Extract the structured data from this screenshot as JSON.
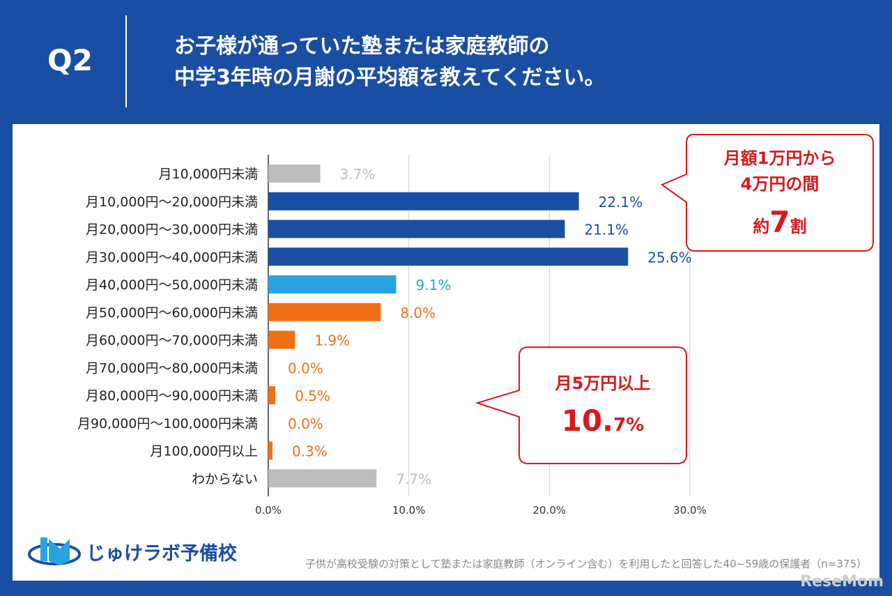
{
  "header": {
    "q": "Q2",
    "title_lines": [
      "お子様が通っていた塾または家庭教師の",
      "中学3年時の月謝の平均額を教えてください。"
    ]
  },
  "chart_data": {
    "type": "bar",
    "orientation": "horizontal",
    "categories": [
      "月10,000円未満",
      "月10,000円～20,000円未満",
      "月20,000円～30,000円未満",
      "月30,000円～40,000円未満",
      "月40,000円～50,000円未満",
      "月50,000円～60,000円未満",
      "月60,000円～70,000円未満",
      "月70,000円～80,000円未満",
      "月80,000円～90,000円未満",
      "月90,000円～100,000円未満",
      "月100,000円以上",
      "わからない"
    ],
    "values": [
      3.7,
      22.1,
      21.1,
      25.6,
      9.1,
      8.0,
      1.9,
      0.0,
      0.5,
      0.0,
      0.3,
      7.7
    ],
    "value_labels": [
      "3.7%",
      "22.1%",
      "21.1%",
      "25.6%",
      "9.1%",
      "8.0%",
      "1.9%",
      "0.0%",
      "0.5%",
      "0.0%",
      "0.3%",
      "7.7%"
    ],
    "colors": [
      "#bdbdbd",
      "#1a4ea2",
      "#1a4ea2",
      "#1a4ea2",
      "#29a3e0",
      "#f07018",
      "#f07018",
      "#f07018",
      "#f07018",
      "#f07018",
      "#f07018",
      "#bdbdbd"
    ],
    "label_colors": [
      "#bdbdbd",
      "#1a4ea2",
      "#1a4ea2",
      "#1a4ea2",
      "#29a3e0",
      "#f07018",
      "#f07018",
      "#f07018",
      "#f07018",
      "#f07018",
      "#f07018",
      "#bdbdbd"
    ],
    "xlim": [
      0,
      30
    ],
    "xticks": [
      "0.0%",
      "10.0%",
      "20.0%",
      "30.0%"
    ],
    "grid": true
  },
  "callouts": {
    "top": {
      "line1": "月額1万円から",
      "line2": "4万円の間",
      "line3a": "約",
      "line3b": "7",
      "line3c": "割"
    },
    "bottom": {
      "line1": "月5万円以上",
      "big_a": "10.",
      "big_b": "7%"
    }
  },
  "footer": {
    "logo": "じゅけラボ予備校",
    "note": "子供が高校受験の対策として塾または家庭教師（オンライン含む）を利用したと回答した40~59歳の保護者（n=375）",
    "watermark": "ReseMom"
  }
}
